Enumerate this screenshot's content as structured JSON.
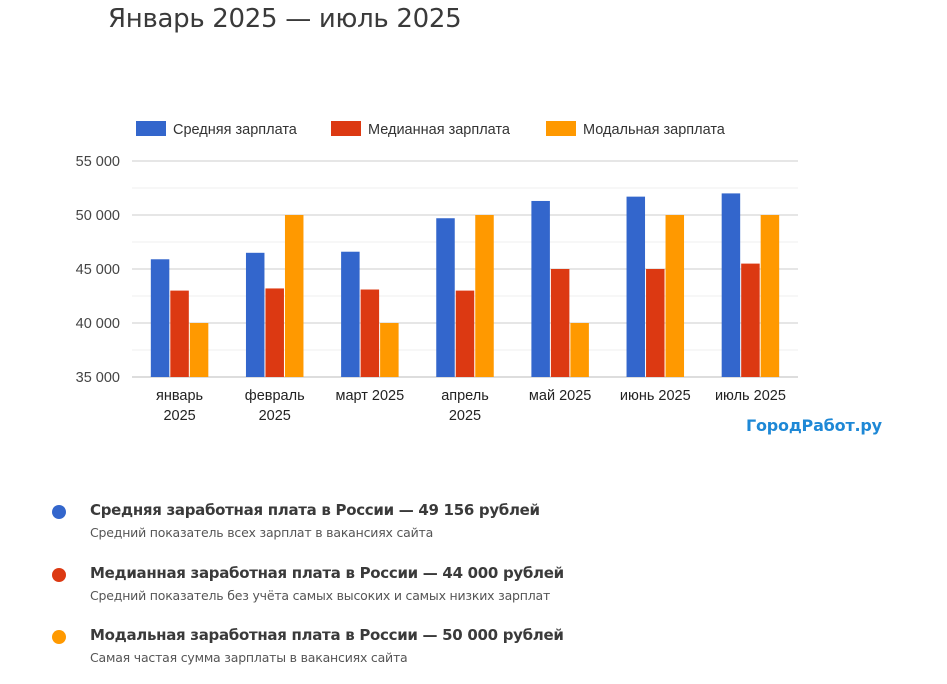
{
  "page": {
    "title": "Январь 2025 — июль 2025",
    "watermark": "ГородРабот.ру"
  },
  "chart_data": {
    "type": "bar",
    "title": "",
    "xlabel": "",
    "ylabel": "",
    "categories": [
      [
        "январь",
        "2025"
      ],
      [
        "февраль",
        "2025"
      ],
      [
        "март 2025"
      ],
      [
        "апрель",
        "2025"
      ],
      [
        "май 2025"
      ],
      [
        "июнь 2025"
      ],
      [
        "июль 2025"
      ]
    ],
    "series": [
      {
        "name": "Средняя зарплата",
        "color": "#3366cc",
        "values": [
          45900,
          46500,
          46600,
          49700,
          51300,
          51700,
          52000
        ]
      },
      {
        "name": "Медианная зарплата",
        "color": "#dc3912",
        "values": [
          43000,
          43200,
          43100,
          43000,
          45000,
          45000,
          45500
        ]
      },
      {
        "name": "Модальная зарплата",
        "color": "#ff9900",
        "values": [
          40000,
          50000,
          40000,
          50000,
          40000,
          50000,
          50000
        ]
      }
    ],
    "ylim": [
      35000,
      55000
    ],
    "yticks": [
      35000,
      40000,
      45000,
      50000,
      55000
    ],
    "ytick_labels": [
      "35 000",
      "40 000",
      "45 000",
      "50 000",
      "55 000"
    ],
    "minor_gridlines": [
      37500,
      42500,
      47500,
      52500
    ],
    "grid": true,
    "legend_position": "top"
  },
  "notes": [
    {
      "color": "#3366cc",
      "title": "Средняя заработная плата в России — 49 156 рублей",
      "desc": "Средний показатель всех зарплат в вакансиях сайта"
    },
    {
      "color": "#dc3912",
      "title": "Медианная заработная плата в России — 44 000 рублей",
      "desc": "Средний показатель без учёта самых высоких и самых низких зарплат"
    },
    {
      "color": "#ff9900",
      "title": "Модальная заработная плата в России — 50 000 рублей",
      "desc": "Самая частая сумма зарплаты в вакансиях сайта"
    }
  ]
}
